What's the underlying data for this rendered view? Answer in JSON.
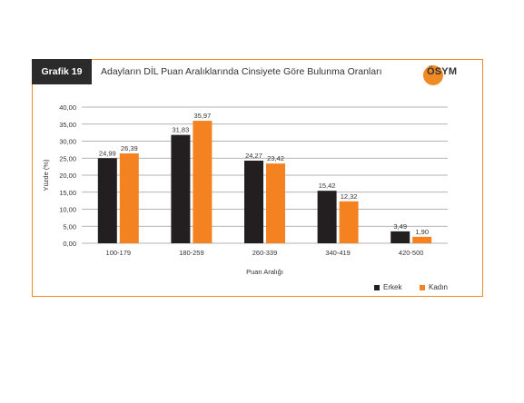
{
  "header": {
    "tag": "Grafik 19",
    "title": "Adayların DİL Puan Aralıklarında Cinsiyete Göre Bulunma Oranları",
    "logo_text": "ÖSYM"
  },
  "colors": {
    "erkek": "#231f20",
    "kadin": "#f58220",
    "accent": "#f08a24",
    "grid": "#9a9a9a"
  },
  "chart_data": {
    "type": "bar",
    "categories": [
      "100-179",
      "180-259",
      "260-339",
      "340-419",
      "420-500"
    ],
    "series": [
      {
        "name": "Erkek",
        "values": [
          24.99,
          31.83,
          24.27,
          15.42,
          3.49
        ]
      },
      {
        "name": "Kadın",
        "values": [
          26.39,
          35.97,
          23.42,
          12.32,
          1.9
        ]
      }
    ],
    "data_labels": [
      [
        "24,99",
        "31,83",
        "24,27",
        "15,42",
        "3,49"
      ],
      [
        "26,39",
        "35,97",
        "23,42",
        "12,32",
        "1,90"
      ]
    ],
    "yticks": [
      "0,00",
      "5,00",
      "10,00",
      "15,00",
      "20,00",
      "25,00",
      "30,00",
      "35,00",
      "40,00"
    ],
    "ylim": [
      0,
      40
    ],
    "xlabel": "Puan Aralığı",
    "ylabel": "Yüzde (%)",
    "grid": true,
    "legend": "bottom-right"
  }
}
